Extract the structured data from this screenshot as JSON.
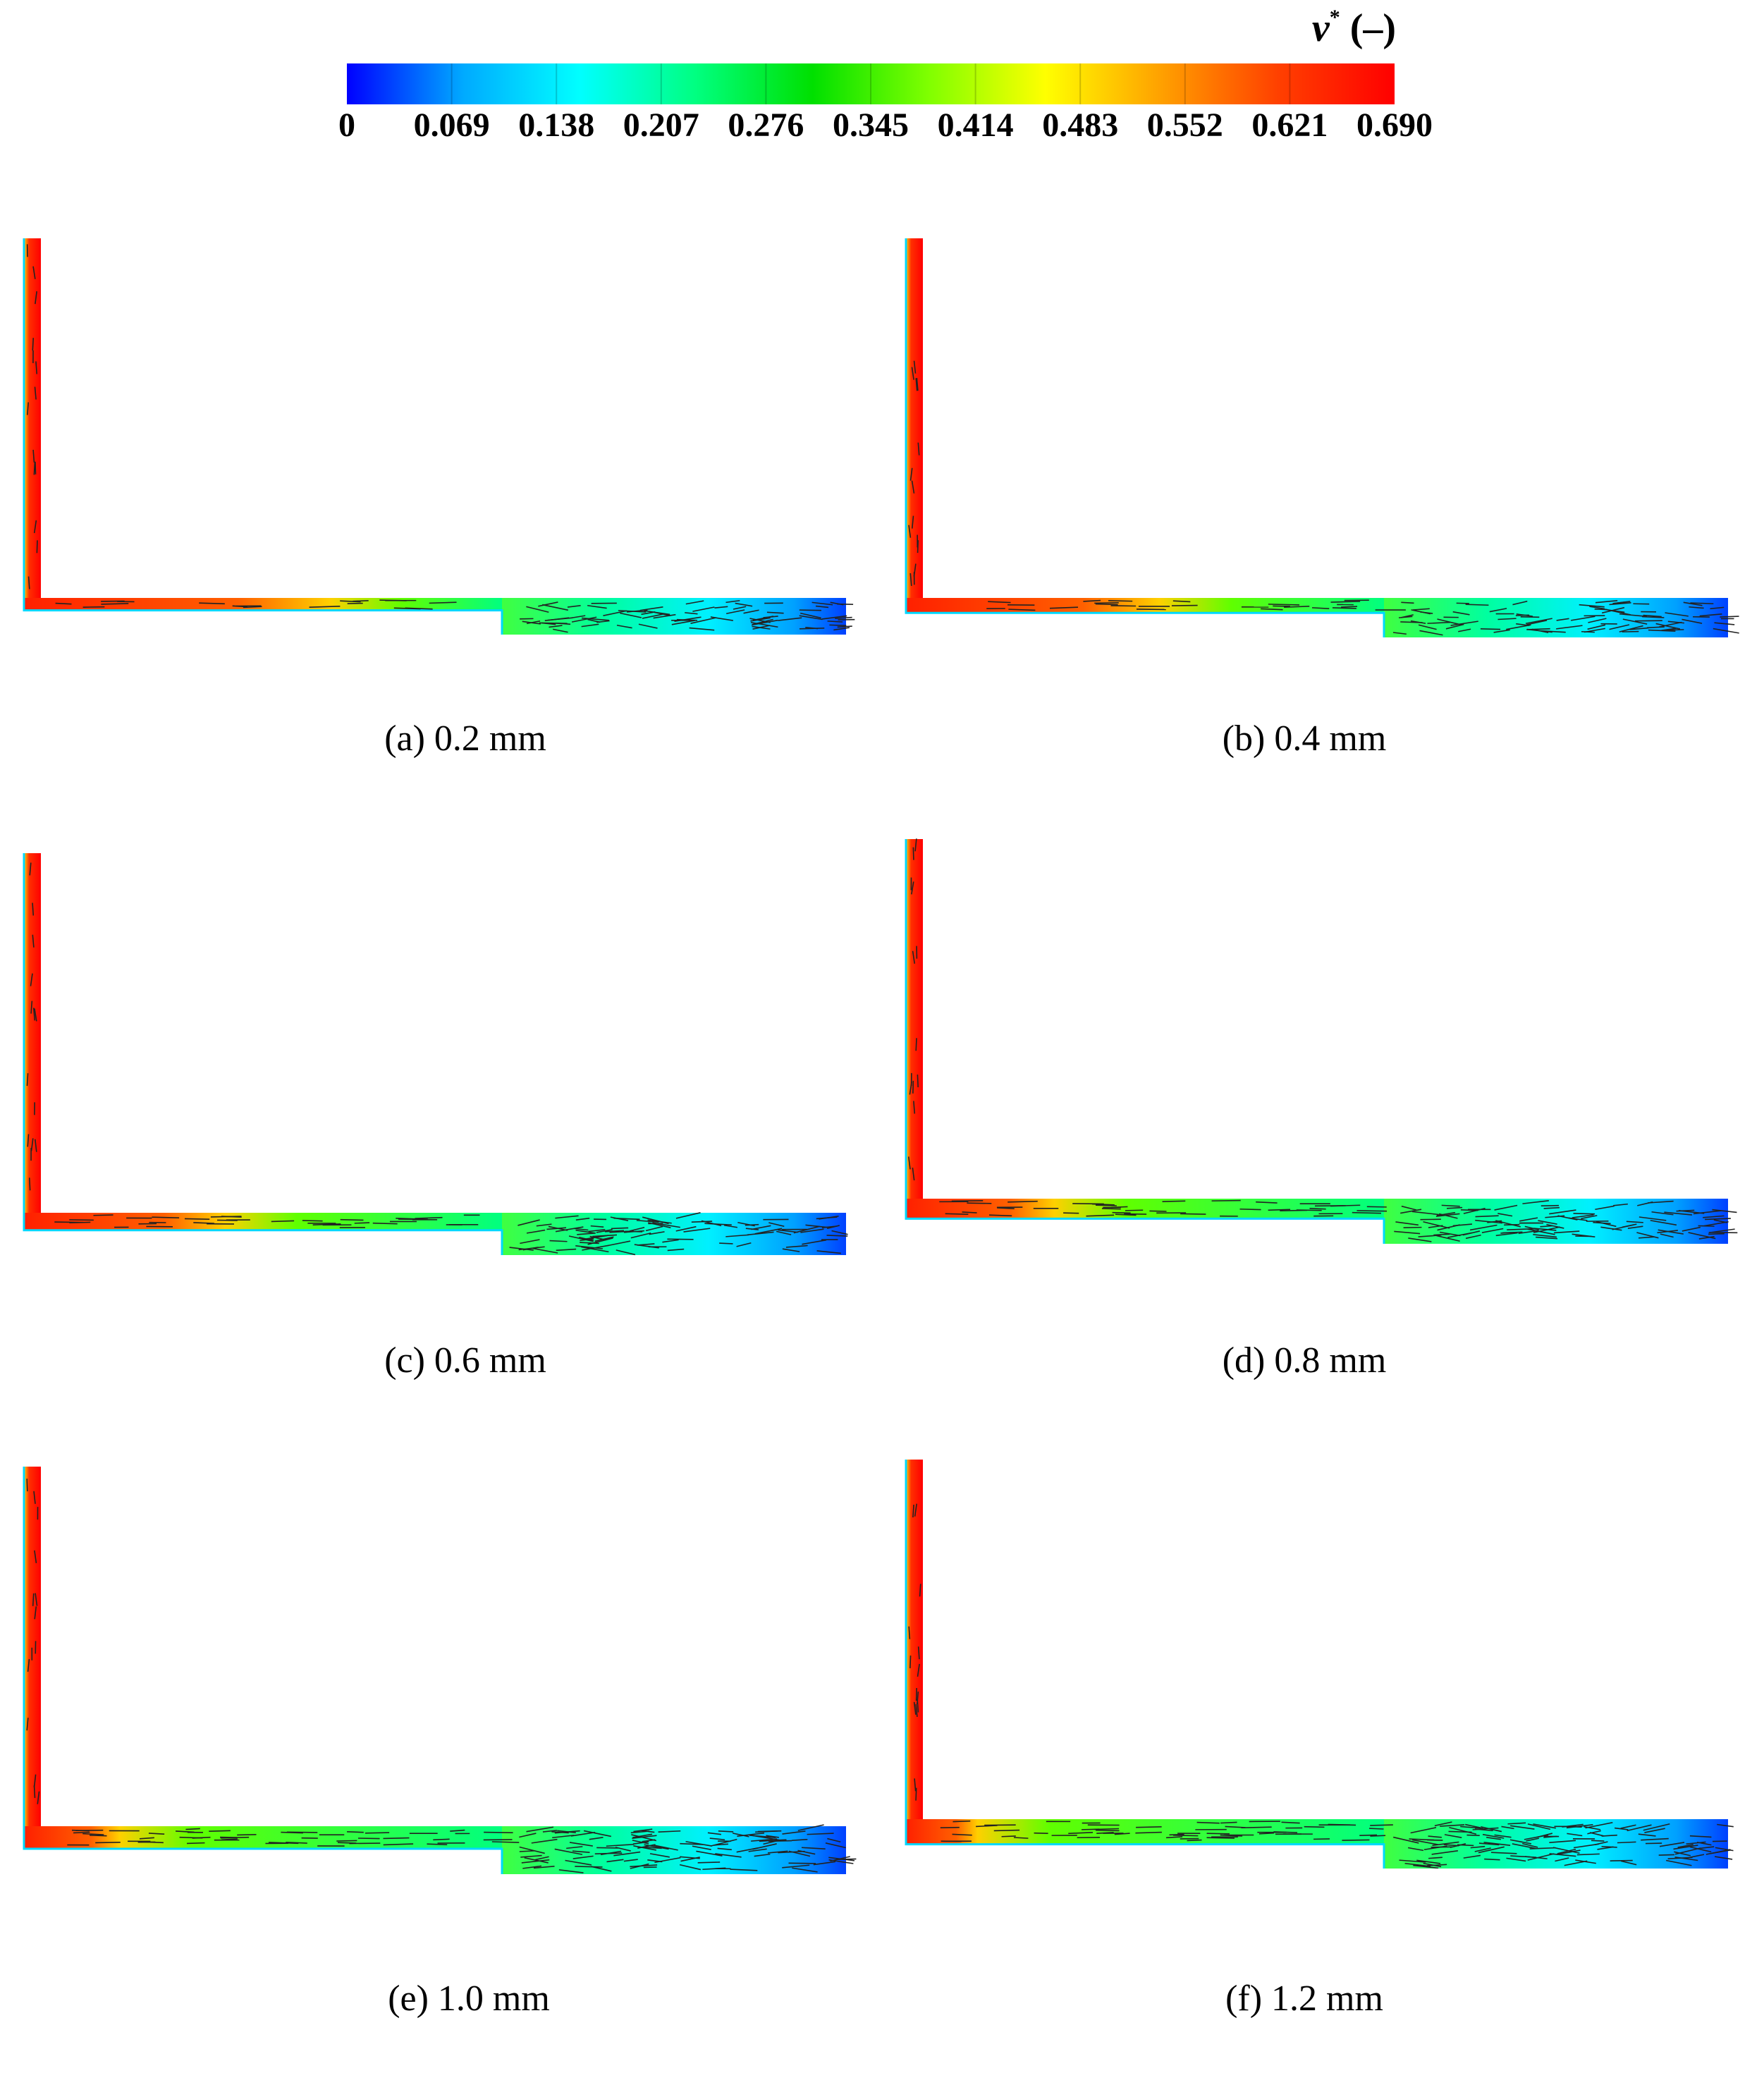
{
  "colorbar": {
    "title_symbol": "v",
    "title_sup": "*",
    "title_unit": "(–)",
    "ticks": [
      "0",
      "0.069",
      "0.138",
      "0.207",
      "0.276",
      "0.345",
      "0.414",
      "0.483",
      "0.552",
      "0.621",
      "0.690"
    ],
    "range": [
      0,
      0.69
    ],
    "colormap": [
      "#0000ff",
      "#00aaff",
      "#00ffff",
      "#00ff80",
      "#00e000",
      "#80ff00",
      "#ffff00",
      "#ffa000",
      "#ff4000",
      "#ff0000"
    ]
  },
  "panels": [
    {
      "caption": "(a) 0.2 mm",
      "gap_mm": 0.2
    },
    {
      "caption": "(b) 0.4 mm",
      "gap_mm": 0.4
    },
    {
      "caption": "(c) 0.6 mm",
      "gap_mm": 0.6
    },
    {
      "caption": "(d) 0.8 mm",
      "gap_mm": 0.8
    },
    {
      "caption": "(e) 1.0 mm",
      "gap_mm": 1.0
    },
    {
      "caption": "(f) 1.2 mm",
      "gap_mm": 1.2
    }
  ]
}
